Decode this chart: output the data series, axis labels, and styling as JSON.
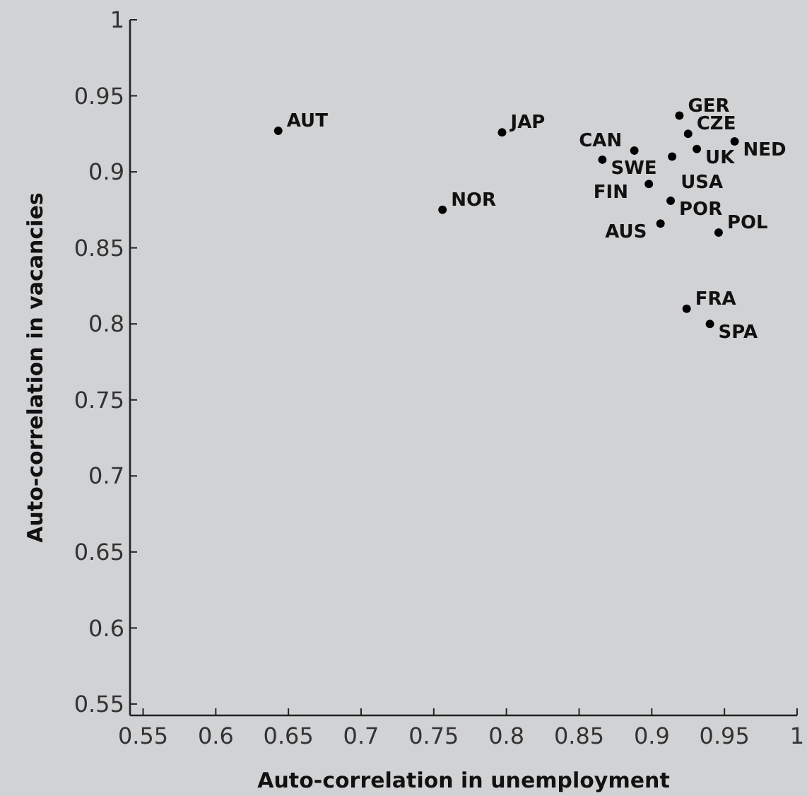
{
  "chart_data": {
    "type": "scatter",
    "xlabel": "Auto-correlation in unemployment",
    "ylabel": "Auto-correlation in vacancies",
    "xlim": [
      0.541,
      1
    ],
    "ylim": [
      0.5425,
      1
    ],
    "xticks": [
      0.55,
      0.6,
      0.65,
      0.7,
      0.75,
      0.8,
      0.85,
      0.9,
      0.95,
      1
    ],
    "yticks": [
      0.55,
      0.6,
      0.65,
      0.7,
      0.75,
      0.8,
      0.85,
      0.9,
      0.95,
      1
    ],
    "grid": false,
    "marker": "circle",
    "series": [
      {
        "color": "#000000",
        "x": [
          0.643,
          0.797,
          0.756,
          0.919,
          0.925,
          0.888,
          0.931,
          0.957,
          0.866,
          0.914,
          0.898,
          0.913,
          0.906,
          0.946,
          0.924,
          0.94
        ],
        "values": [
          0.927,
          0.926,
          0.875,
          0.937,
          0.925,
          0.914,
          0.915,
          0.92,
          0.908,
          0.91,
          0.892,
          0.881,
          0.866,
          0.86,
          0.81,
          0.8
        ]
      }
    ],
    "annotations": [
      {
        "text": "AUT",
        "x": 0.643,
        "y": 0.927
      },
      {
        "text": "JAP",
        "x": 0.797,
        "y": 0.926
      },
      {
        "text": "NOR",
        "x": 0.756,
        "y": 0.875
      },
      {
        "text": "GER",
        "x": 0.919,
        "y": 0.937
      },
      {
        "text": "CZE",
        "x": 0.925,
        "y": 0.925
      },
      {
        "text": "CAN",
        "x": 0.888,
        "y": 0.914
      },
      {
        "text": "UK",
        "x": 0.931,
        "y": 0.915
      },
      {
        "text": "NED",
        "x": 0.957,
        "y": 0.92
      },
      {
        "text": "SWE",
        "x": 0.866,
        "y": 0.908
      },
      {
        "text": "USA",
        "x": 0.914,
        "y": 0.91
      },
      {
        "text": "FIN",
        "x": 0.898,
        "y": 0.892
      },
      {
        "text": "POR",
        "x": 0.913,
        "y": 0.881
      },
      {
        "text": "AUS",
        "x": 0.906,
        "y": 0.866
      },
      {
        "text": "POL",
        "x": 0.946,
        "y": 0.86
      },
      {
        "text": "FRA",
        "x": 0.924,
        "y": 0.81
      },
      {
        "text": "SPA",
        "x": 0.94,
        "y": 0.8
      }
    ]
  }
}
